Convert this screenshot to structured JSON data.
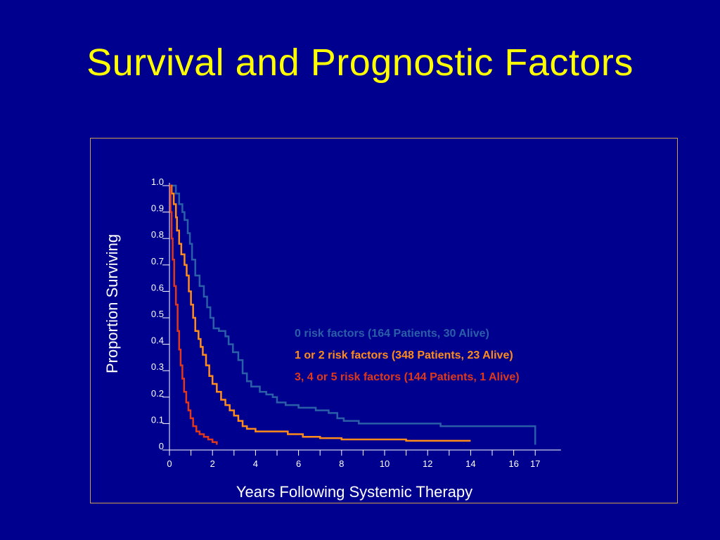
{
  "slide": {
    "title": "Survival and Prognostic Factors"
  },
  "chart_data": {
    "type": "line",
    "step": true,
    "title": "",
    "xlabel": "Years Following Systemic Therapy",
    "ylabel": "Proportion Surviving",
    "xlim": [
      0,
      18
    ],
    "ylim": [
      0,
      1.0
    ],
    "x_ticks": [
      0,
      2,
      4,
      6,
      8,
      10,
      12,
      14,
      16,
      17
    ],
    "x_minor_ticks": [
      1,
      3,
      5,
      7,
      9,
      11,
      13,
      15
    ],
    "y_ticks": [
      {
        "value": 0,
        "label": "0"
      },
      {
        "value": 0.1,
        "label": "0.1"
      },
      {
        "value": 0.2,
        "label": "0.2"
      },
      {
        "value": 0.3,
        "label": "0.3"
      },
      {
        "value": 0.4,
        "label": "0.4"
      },
      {
        "value": 0.5,
        "label": "0.5"
      },
      {
        "value": 0.6,
        "label": "0.6"
      },
      {
        "value": 0.7,
        "label": "0.7"
      },
      {
        "value": 0.8,
        "label": "0.8"
      },
      {
        "value": 0.9,
        "label": "0.9"
      },
      {
        "value": 1.0,
        "label": "1.0"
      }
    ],
    "grid": false,
    "legend_position": "center-right",
    "series": [
      {
        "name": "0 risk factors (164 Patients, 30 Alive)",
        "color": "#2a5fa8",
        "points": [
          [
            0,
            1.0
          ],
          [
            0.2,
            1.0
          ],
          [
            0.3,
            0.97
          ],
          [
            0.45,
            0.93
          ],
          [
            0.6,
            0.9
          ],
          [
            0.7,
            0.87
          ],
          [
            0.85,
            0.82
          ],
          [
            0.95,
            0.78
          ],
          [
            1.05,
            0.72
          ],
          [
            1.2,
            0.66
          ],
          [
            1.4,
            0.62
          ],
          [
            1.6,
            0.58
          ],
          [
            1.75,
            0.54
          ],
          [
            1.9,
            0.5
          ],
          [
            2.05,
            0.46
          ],
          [
            2.3,
            0.45
          ],
          [
            2.6,
            0.43
          ],
          [
            2.75,
            0.4
          ],
          [
            2.95,
            0.37
          ],
          [
            3.2,
            0.34
          ],
          [
            3.4,
            0.29
          ],
          [
            3.6,
            0.26
          ],
          [
            3.8,
            0.24
          ],
          [
            4.2,
            0.22
          ],
          [
            4.5,
            0.21
          ],
          [
            4.8,
            0.2
          ],
          [
            5.0,
            0.18
          ],
          [
            5.4,
            0.17
          ],
          [
            6.0,
            0.16
          ],
          [
            6.8,
            0.15
          ],
          [
            7.4,
            0.14
          ],
          [
            7.8,
            0.12
          ],
          [
            8.1,
            0.11
          ],
          [
            8.8,
            0.1
          ],
          [
            9.5,
            0.1
          ],
          [
            10.5,
            0.1
          ],
          [
            12.5,
            0.1
          ],
          [
            12.6,
            0.09
          ],
          [
            17.0,
            0.09
          ],
          [
            17.0,
            0.02
          ]
        ]
      },
      {
        "name": "1 or 2 risk factors (348 Patients, 23 Alive)",
        "color": "#ff8c1a",
        "points": [
          [
            0,
            1.0
          ],
          [
            0.1,
            0.97
          ],
          [
            0.2,
            0.93
          ],
          [
            0.3,
            0.88
          ],
          [
            0.35,
            0.83
          ],
          [
            0.45,
            0.78
          ],
          [
            0.55,
            0.74
          ],
          [
            0.7,
            0.7
          ],
          [
            0.8,
            0.66
          ],
          [
            0.9,
            0.6
          ],
          [
            1.0,
            0.55
          ],
          [
            1.1,
            0.5
          ],
          [
            1.2,
            0.45
          ],
          [
            1.35,
            0.42
          ],
          [
            1.45,
            0.39
          ],
          [
            1.55,
            0.36
          ],
          [
            1.7,
            0.32
          ],
          [
            1.85,
            0.28
          ],
          [
            2.0,
            0.25
          ],
          [
            2.2,
            0.22
          ],
          [
            2.4,
            0.19
          ],
          [
            2.6,
            0.17
          ],
          [
            2.8,
            0.15
          ],
          [
            3.0,
            0.13
          ],
          [
            3.2,
            0.11
          ],
          [
            3.4,
            0.09
          ],
          [
            3.6,
            0.08
          ],
          [
            4.0,
            0.07
          ],
          [
            5.0,
            0.07
          ],
          [
            5.5,
            0.06
          ],
          [
            6.2,
            0.05
          ],
          [
            7.0,
            0.045
          ],
          [
            8.0,
            0.04
          ],
          [
            9.5,
            0.04
          ],
          [
            10.7,
            0.04
          ],
          [
            11.0,
            0.035
          ],
          [
            14.0,
            0.035
          ]
        ]
      },
      {
        "name": "3, 4 or 5 risk factors (144 Patients, 1 Alive)",
        "color": "#e03818",
        "points": [
          [
            0,
            1.0
          ],
          [
            0.05,
            0.9
          ],
          [
            0.1,
            0.8
          ],
          [
            0.15,
            0.72
          ],
          [
            0.22,
            0.62
          ],
          [
            0.3,
            0.55
          ],
          [
            0.38,
            0.45
          ],
          [
            0.45,
            0.38
          ],
          [
            0.52,
            0.32
          ],
          [
            0.6,
            0.27
          ],
          [
            0.68,
            0.22
          ],
          [
            0.78,
            0.18
          ],
          [
            0.88,
            0.15
          ],
          [
            0.98,
            0.12
          ],
          [
            1.1,
            0.09
          ],
          [
            1.25,
            0.07
          ],
          [
            1.4,
            0.06
          ],
          [
            1.6,
            0.05
          ],
          [
            1.8,
            0.04
          ],
          [
            2.0,
            0.03
          ],
          [
            2.2,
            0.02
          ]
        ]
      }
    ]
  }
}
